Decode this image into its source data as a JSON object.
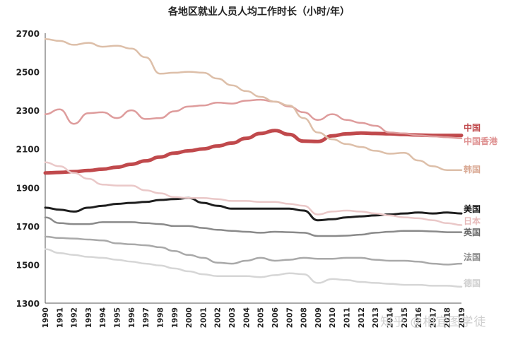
{
  "chart_data": {
    "type": "line",
    "title": "各地区就业人员人均工作时长（小时/年）",
    "xlabel": "",
    "ylabel": "",
    "ylim": [
      1300,
      2700
    ],
    "yticks": [
      1300,
      1500,
      1700,
      1900,
      2100,
      2300,
      2500,
      2700
    ],
    "grid": false,
    "x": [
      "1990",
      "1991",
      "1992",
      "1993",
      "1994",
      "1995",
      "1996",
      "1997",
      "1998",
      "1999",
      "2000",
      "2001",
      "2002",
      "2003",
      "2004",
      "2005",
      "2006",
      "2007",
      "2008",
      "2009",
      "2010",
      "2011",
      "2012",
      "2013",
      "2014",
      "2015",
      "2016",
      "2017",
      "2018",
      "2019"
    ],
    "series": [
      {
        "name": "中国",
        "color": "#c0494c",
        "width": 5,
        "values": [
          1975,
          1978,
          1982,
          1988,
          1995,
          2005,
          2020,
          2038,
          2058,
          2078,
          2090,
          2100,
          2115,
          2130,
          2155,
          2180,
          2195,
          2175,
          2140,
          2138,
          2168,
          2178,
          2182,
          2180,
          2178,
          2175,
          2172,
          2170,
          2170,
          2170
        ]
      },
      {
        "name": "中国香港",
        "color": "#de9c9c",
        "width": 2.5,
        "values": [
          2280,
          2305,
          2230,
          2285,
          2290,
          2260,
          2300,
          2255,
          2260,
          2295,
          2320,
          2325,
          2340,
          2335,
          2350,
          2355,
          2345,
          2320,
          2290,
          2250,
          2280,
          2250,
          2235,
          2220,
          2185,
          2180,
          2170,
          2165,
          2160,
          2155
        ]
      },
      {
        "name": "韩国",
        "color": "#ddbfa9",
        "width": 2.5,
        "values": [
          2670,
          2660,
          2640,
          2650,
          2630,
          2635,
          2620,
          2575,
          2490,
          2495,
          2500,
          2495,
          2465,
          2430,
          2400,
          2370,
          2345,
          2325,
          2260,
          2185,
          2150,
          2125,
          2110,
          2090,
          2075,
          2080,
          2040,
          2010,
          1990,
          1990
        ]
      },
      {
        "name": "美国",
        "color": "#1e1e1e",
        "width": 3,
        "values": [
          1795,
          1785,
          1775,
          1795,
          1805,
          1815,
          1820,
          1825,
          1835,
          1840,
          1845,
          1820,
          1805,
          1790,
          1790,
          1790,
          1790,
          1790,
          1780,
          1730,
          1735,
          1745,
          1750,
          1755,
          1760,
          1765,
          1770,
          1765,
          1770,
          1765
        ]
      },
      {
        "name": "日本",
        "color": "#eac8c8",
        "width": 2.5,
        "values": [
          2030,
          2010,
          1975,
          1945,
          1915,
          1910,
          1910,
          1885,
          1870,
          1850,
          1845,
          1845,
          1840,
          1830,
          1830,
          1825,
          1825,
          1815,
          1805,
          1760,
          1775,
          1780,
          1775,
          1765,
          1755,
          1745,
          1740,
          1730,
          1715,
          1705
        ]
      },
      {
        "name": "英国",
        "color": "#8a8a8a",
        "width": 2.5,
        "values": [
          1745,
          1715,
          1710,
          1710,
          1720,
          1720,
          1720,
          1715,
          1710,
          1700,
          1700,
          1690,
          1680,
          1675,
          1670,
          1665,
          1670,
          1668,
          1665,
          1648,
          1648,
          1650,
          1655,
          1665,
          1670,
          1675,
          1675,
          1672,
          1668,
          1668
        ]
      },
      {
        "name": "法国",
        "color": "#a9a9a9",
        "width": 2.5,
        "values": [
          1645,
          1638,
          1635,
          1630,
          1625,
          1610,
          1605,
          1600,
          1590,
          1570,
          1550,
          1535,
          1510,
          1505,
          1520,
          1535,
          1520,
          1525,
          1535,
          1530,
          1530,
          1535,
          1535,
          1525,
          1520,
          1520,
          1515,
          1505,
          1500,
          1505
        ]
      },
      {
        "name": "德国",
        "color": "#d6d6d6",
        "width": 2.5,
        "values": [
          1580,
          1560,
          1550,
          1540,
          1535,
          1525,
          1515,
          1505,
          1495,
          1480,
          1465,
          1450,
          1440,
          1440,
          1440,
          1435,
          1445,
          1455,
          1450,
          1405,
          1425,
          1420,
          1410,
          1405,
          1400,
          1395,
          1395,
          1390,
          1390,
          1385
        ]
      }
    ]
  },
  "watermark": "知乎 @相宜图学徒"
}
